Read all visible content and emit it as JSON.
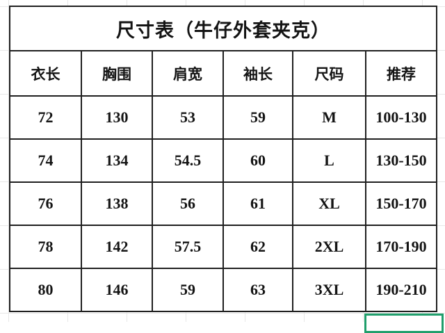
{
  "sheet": {
    "kind": "spreadsheet-grid"
  },
  "colors": {
    "table_border": "#1f1f1f",
    "text": "#141414",
    "gridline": "#e7e7e7",
    "selection_green": "#1f9e6b",
    "background": "#ffffff"
  },
  "table": {
    "title": "尺寸表（牛仔外套夹克）",
    "headers": [
      "衣长",
      "胸围",
      "肩宽",
      "袖长",
      "尺码",
      "推荐"
    ],
    "rows": [
      [
        "72",
        "130",
        "53",
        "59",
        "M",
        "100-130"
      ],
      [
        "74",
        "134",
        "54.5",
        "60",
        "L",
        "130-150"
      ],
      [
        "76",
        "138",
        "56",
        "61",
        "XL",
        "150-170"
      ],
      [
        "78",
        "142",
        "57.5",
        "62",
        "2XL",
        "170-190"
      ],
      [
        "80",
        "146",
        "59",
        "63",
        "3XL",
        "190-210"
      ]
    ]
  }
}
